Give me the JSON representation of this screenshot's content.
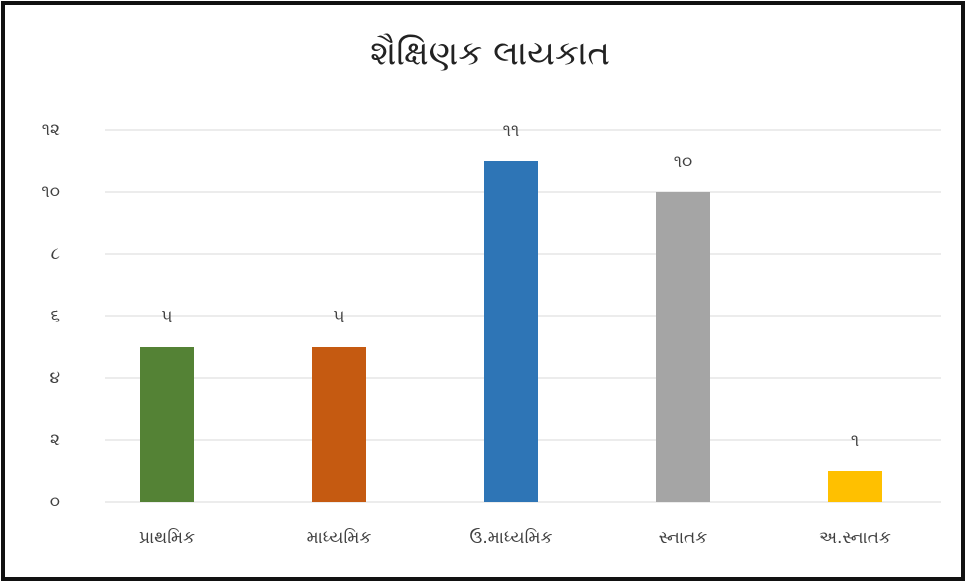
{
  "chart_data": {
    "type": "bar",
    "title": "શૈક્ષિણક લાયકાત",
    "categories": [
      "પ્રાથમિક",
      "માધ્યમિક",
      "ઉ.માધ્યમિક",
      "સ્નાતક",
      "અ.સ્નાતક"
    ],
    "values": [
      5,
      5,
      11,
      10,
      1
    ],
    "value_labels": [
      "૫",
      "૫",
      "૧૧",
      "૧૦",
      "૧"
    ],
    "colors": [
      "#548235",
      "#c55a11",
      "#2e75b6",
      "#a5a5a5",
      "#ffc000"
    ],
    "ylim": [
      0,
      12
    ],
    "yticks": [
      {
        "value": 0,
        "label": "૦"
      },
      {
        "value": 2,
        "label": "૨"
      },
      {
        "value": 4,
        "label": "૪"
      },
      {
        "value": 6,
        "label": "૬"
      },
      {
        "value": 8,
        "label": "૮"
      },
      {
        "value": 10,
        "label": "૧૦"
      },
      {
        "value": 12,
        "label": "૧૨"
      }
    ],
    "grid": true
  }
}
